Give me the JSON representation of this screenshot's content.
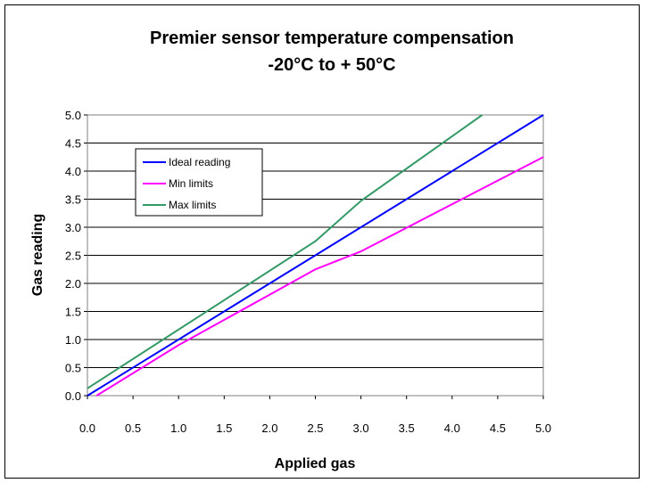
{
  "chart_data": {
    "type": "line",
    "title_line1": "Premier sensor temperature compensation",
    "title_line2": "-20°C to + 50°C",
    "xlabel": "Applied gas",
    "ylabel": "Gas reading",
    "xlim": [
      0,
      5
    ],
    "ylim": [
      0,
      5
    ],
    "x_ticks": [
      "0.0",
      "0.5",
      "1.0",
      "1.5",
      "2.0",
      "2.5",
      "3.0",
      "3.5",
      "4.0",
      "4.5",
      "5.0"
    ],
    "y_ticks": [
      "0.0",
      "0.5",
      "1.0",
      "1.5",
      "2.0",
      "2.5",
      "3.0",
      "3.5",
      "4.0",
      "4.5",
      "5.0"
    ],
    "grid": "horizontal",
    "legend_position": "top-left",
    "series": [
      {
        "name": "Ideal reading",
        "color": "#0000ff",
        "x": [
          0,
          5
        ],
        "y": [
          0,
          5
        ]
      },
      {
        "name": "Min limits",
        "color": "#ff00ff",
        "x": [
          0.1,
          1.0,
          2.5,
          3.0,
          5.0
        ],
        "y": [
          0.0,
          0.9,
          2.25,
          2.57,
          4.25
        ]
      },
      {
        "name": "Max limits",
        "color": "#339966",
        "x": [
          0,
          2.5,
          3.0,
          4.33
        ],
        "y": [
          0.13,
          2.75,
          3.47,
          5.0
        ]
      }
    ]
  }
}
